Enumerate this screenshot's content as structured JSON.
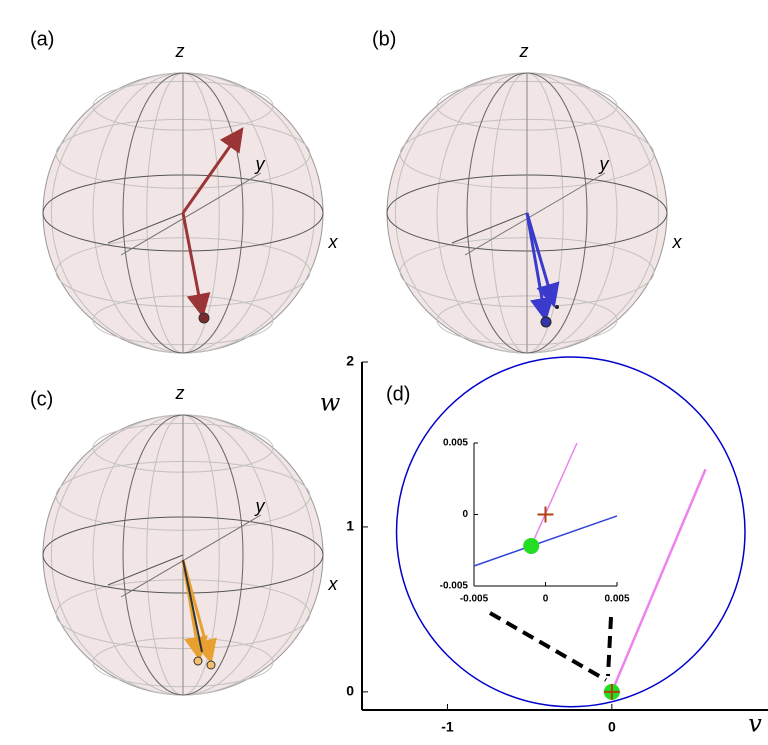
{
  "panels": [
    {
      "label": "(a)",
      "z": "z",
      "y": "y",
      "x": "x"
    },
    {
      "label": "(b)",
      "z": "z",
      "y": "y",
      "x": "x"
    },
    {
      "label": "(c)",
      "z": "z",
      "y": "y",
      "x": "x"
    }
  ],
  "chart_data": {
    "type": "line",
    "label": "(d)",
    "xlabel": "v",
    "ylabel": "w",
    "xlim": [
      -1.52,
      0.95
    ],
    "ylim": [
      -0.11,
      2.0
    ],
    "xticks": [
      -1,
      0
    ],
    "yticks": [
      0,
      1,
      2
    ],
    "circle": {
      "center": [
        -0.25,
        0.97
      ],
      "radius": 1.06,
      "color": "#0000cc"
    },
    "lines": [
      {
        "color": "#ee82ee",
        "x": [
          0,
          0.57
        ],
        "y": [
          0,
          1.35
        ]
      }
    ],
    "points": [
      {
        "shape": "dot",
        "color": "#22dd22",
        "x": 0,
        "y": 0
      },
      {
        "shape": "cross",
        "color": "#b04010",
        "x": 0,
        "y": 0
      }
    ],
    "inset": {
      "xlim": [
        -0.005,
        0.005
      ],
      "ylim": [
        -0.005,
        0.005
      ],
      "xticks": [
        -0.005,
        0,
        0.005
      ],
      "yticks": [
        -0.005,
        0,
        0.005
      ],
      "lines": [
        {
          "color": "#ee82ee",
          "x": [
            -0.001,
            0.0022
          ],
          "y": [
            -0.0022,
            0.005
          ]
        },
        {
          "color": "#3344dd",
          "x": [
            -0.005,
            0.005
          ],
          "y": [
            -0.0036,
            -0.0001
          ]
        }
      ],
      "points": [
        {
          "shape": "dot",
          "color": "#22dd22",
          "x": -0.001,
          "y": -0.0022
        },
        {
          "shape": "cross",
          "color": "#b04010",
          "x": 0,
          "y": 0
        }
      ]
    }
  }
}
